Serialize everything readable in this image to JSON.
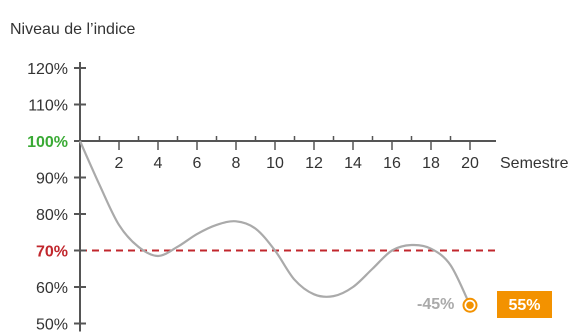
{
  "chart_data": {
    "type": "line",
    "ylabel": "Niveau de l’indice",
    "xlabel": "Semestre",
    "ylim": [
      50,
      120
    ],
    "xlim": [
      0,
      21
    ],
    "y_ticks": [
      50,
      60,
      70,
      80,
      90,
      100,
      110,
      120
    ],
    "y_tick_labels": [
      "50%",
      "60%",
      "70%",
      "80%",
      "90%",
      "100%",
      "110%",
      "120%"
    ],
    "x_ticks": [
      2,
      4,
      6,
      8,
      10,
      12,
      14,
      16,
      18,
      20
    ],
    "x_tick_labels": [
      "2",
      "4",
      "6",
      "8",
      "10",
      "12",
      "14",
      "16",
      "18",
      "20"
    ],
    "x_minor_ticks": [
      1,
      3,
      5,
      7,
      9,
      11,
      13,
      15,
      17,
      19
    ],
    "highlight_levels": [
      {
        "value": 100,
        "label": "100%",
        "color": "#3aaa35",
        "line_from": 2,
        "line_to": 7
      },
      {
        "value": 70,
        "label": "70%",
        "color": "#c1272d",
        "line_from": 0,
        "line_to": 21
      }
    ],
    "series": [
      {
        "color": "#aaaaaa",
        "x": [
          0,
          1,
          2,
          3,
          4,
          5,
          6,
          7,
          8,
          9,
          10,
          11,
          12,
          13,
          14,
          15,
          16,
          17,
          18,
          19,
          20
        ],
        "y": [
          100,
          88,
          77,
          71,
          68.5,
          71,
          74.5,
          77,
          78,
          76,
          70,
          62,
          58,
          57.5,
          60,
          65,
          70,
          71.5,
          70.5,
          66,
          55
        ]
      }
    ],
    "final_point": {
      "x": 20,
      "y": 55,
      "color": "#f39200"
    },
    "annotations": {
      "performance": "-45%",
      "final_value": "55%"
    },
    "colors": {
      "axis": "#555555",
      "badge": "#f39200",
      "line": "#aaaaaa"
    }
  }
}
